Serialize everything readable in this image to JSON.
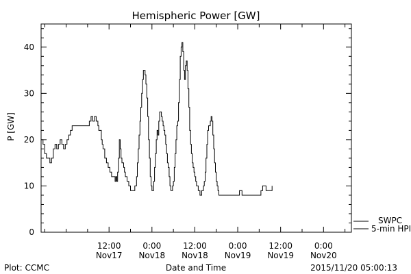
{
  "chart_data": {
    "type": "line",
    "title": "Hemispheric Power [GW]",
    "ylabel": "P [GW]",
    "xlabel": "Date and Time",
    "ylim": [
      0,
      45
    ],
    "yticks": [
      0,
      10,
      20,
      30,
      40
    ],
    "xlim": [
      -0.292,
      3.325
    ],
    "xticks": [
      {
        "t": 0.5,
        "time": "12:00",
        "date": "Nov17"
      },
      {
        "t": 1.0,
        "time": "0:00",
        "date": "Nov18"
      },
      {
        "t": 1.5,
        "time": "12:00",
        "date": "Nov18"
      },
      {
        "t": 2.0,
        "time": "0:00",
        "date": "Nov19"
      },
      {
        "t": 2.5,
        "time": "12:00",
        "date": "Nov19"
      },
      {
        "t": 3.0,
        "time": "0:00",
        "date": "Nov20"
      }
    ],
    "grid": false,
    "legend_position": "bottom-right",
    "series": [
      {
        "name": "SWPC",
        "values": [
          [
            -0.292,
            20
          ],
          [
            -0.27,
            19
          ],
          [
            -0.25,
            17
          ],
          [
            -0.23,
            16
          ],
          [
            -0.21,
            16
          ],
          [
            -0.19,
            15
          ],
          [
            -0.17,
            16
          ],
          [
            -0.15,
            18
          ],
          [
            -0.13,
            19
          ],
          [
            -0.11,
            18
          ],
          [
            -0.09,
            19
          ],
          [
            -0.07,
            20
          ],
          [
            -0.05,
            19
          ],
          [
            -0.03,
            18
          ],
          [
            -0.01,
            19
          ],
          [
            0.01,
            20
          ],
          [
            0.03,
            21
          ],
          [
            0.05,
            22
          ],
          [
            0.07,
            23
          ],
          [
            0.1,
            23
          ],
          [
            0.15,
            23
          ],
          [
            0.2,
            23
          ],
          [
            0.25,
            23
          ],
          [
            0.27,
            24
          ],
          [
            0.29,
            25
          ],
          [
            0.31,
            24
          ],
          [
            0.33,
            25
          ],
          [
            0.35,
            24
          ],
          [
            0.37,
            23
          ],
          [
            0.38,
            22
          ],
          [
            0.4,
            22
          ],
          [
            0.41,
            20
          ],
          [
            0.42,
            19
          ],
          [
            0.43,
            18
          ],
          [
            0.45,
            16
          ],
          [
            0.47,
            15
          ],
          [
            0.49,
            14
          ],
          [
            0.51,
            13
          ],
          [
            0.53,
            12
          ],
          [
            0.55,
            12
          ],
          [
            0.57,
            11
          ],
          [
            0.58,
            12
          ],
          [
            0.59,
            11
          ],
          [
            0.6,
            13
          ],
          [
            0.61,
            16
          ],
          [
            0.62,
            20
          ],
          [
            0.63,
            18
          ],
          [
            0.64,
            16
          ],
          [
            0.65,
            15
          ],
          [
            0.67,
            14
          ],
          [
            0.68,
            13
          ],
          [
            0.69,
            12
          ],
          [
            0.7,
            12
          ],
          [
            0.71,
            11
          ],
          [
            0.72,
            11
          ],
          [
            0.73,
            10
          ],
          [
            0.74,
            10
          ],
          [
            0.75,
            9
          ],
          [
            0.77,
            9
          ],
          [
            0.79,
            9
          ],
          [
            0.8,
            10
          ],
          [
            0.81,
            10
          ],
          [
            0.82,
            12
          ],
          [
            0.83,
            15
          ],
          [
            0.84,
            18
          ],
          [
            0.85,
            21
          ],
          [
            0.86,
            24
          ],
          [
            0.87,
            27
          ],
          [
            0.88,
            30
          ],
          [
            0.89,
            33
          ],
          [
            0.9,
            35
          ],
          [
            0.91,
            35
          ],
          [
            0.92,
            34
          ],
          [
            0.93,
            32
          ],
          [
            0.94,
            29
          ],
          [
            0.95,
            25
          ],
          [
            0.96,
            20
          ],
          [
            0.97,
            16
          ],
          [
            0.98,
            12
          ],
          [
            0.99,
            10
          ],
          [
            1.0,
            9
          ],
          [
            1.01,
            9
          ],
          [
            1.02,
            11
          ],
          [
            1.03,
            14
          ],
          [
            1.04,
            17
          ],
          [
            1.05,
            20
          ],
          [
            1.06,
            22
          ],
          [
            1.07,
            21
          ],
          [
            1.08,
            24
          ],
          [
            1.09,
            26
          ],
          [
            1.1,
            26
          ],
          [
            1.11,
            25
          ],
          [
            1.12,
            24
          ],
          [
            1.13,
            23
          ],
          [
            1.14,
            22
          ],
          [
            1.15,
            21
          ],
          [
            1.16,
            19
          ],
          [
            1.17,
            17
          ],
          [
            1.18,
            15
          ],
          [
            1.19,
            14
          ],
          [
            1.2,
            12
          ],
          [
            1.21,
            10
          ],
          [
            1.22,
            9
          ],
          [
            1.23,
            9
          ],
          [
            1.24,
            10
          ],
          [
            1.25,
            11
          ],
          [
            1.26,
            14
          ],
          [
            1.27,
            17
          ],
          [
            1.28,
            20
          ],
          [
            1.29,
            23
          ],
          [
            1.3,
            24
          ],
          [
            1.31,
            28
          ],
          [
            1.32,
            33
          ],
          [
            1.33,
            38
          ],
          [
            1.34,
            40
          ],
          [
            1.35,
            41
          ],
          [
            1.36,
            39
          ],
          [
            1.37,
            35
          ],
          [
            1.38,
            33
          ],
          [
            1.39,
            36
          ],
          [
            1.4,
            37
          ],
          [
            1.41,
            35
          ],
          [
            1.42,
            31
          ],
          [
            1.43,
            27
          ],
          [
            1.44,
            22
          ],
          [
            1.45,
            19
          ],
          [
            1.46,
            17
          ],
          [
            1.47,
            15
          ],
          [
            1.48,
            14
          ],
          [
            1.49,
            13
          ],
          [
            1.5,
            12
          ],
          [
            1.51,
            11
          ],
          [
            1.52,
            10
          ],
          [
            1.53,
            10
          ],
          [
            1.54,
            9
          ],
          [
            1.55,
            9
          ],
          [
            1.56,
            8
          ],
          [
            1.57,
            8
          ],
          [
            1.58,
            9
          ],
          [
            1.59,
            9
          ],
          [
            1.6,
            10
          ],
          [
            1.61,
            11
          ],
          [
            1.62,
            13
          ],
          [
            1.63,
            16
          ],
          [
            1.64,
            19
          ],
          [
            1.65,
            22
          ],
          [
            1.66,
            23
          ],
          [
            1.67,
            23
          ],
          [
            1.68,
            24
          ],
          [
            1.69,
            25
          ],
          [
            1.7,
            24
          ],
          [
            1.71,
            21
          ],
          [
            1.72,
            18
          ],
          [
            1.73,
            15
          ],
          [
            1.74,
            13
          ],
          [
            1.75,
            11
          ],
          [
            1.76,
            10
          ],
          [
            1.77,
            9
          ],
          [
            1.78,
            8
          ],
          [
            1.8,
            8
          ],
          [
            1.85,
            8
          ],
          [
            1.9,
            8
          ],
          [
            1.95,
            8
          ],
          [
            2.0,
            8
          ],
          [
            2.02,
            9
          ],
          [
            2.03,
            9
          ],
          [
            2.05,
            8
          ],
          [
            2.1,
            8
          ],
          [
            2.15,
            8
          ],
          [
            2.2,
            8
          ],
          [
            2.25,
            8
          ],
          [
            2.27,
            9
          ],
          [
            2.29,
            10
          ],
          [
            2.31,
            10
          ],
          [
            2.33,
            9
          ],
          [
            2.35,
            9
          ],
          [
            2.37,
            9
          ],
          [
            2.4,
            10
          ]
        ]
      },
      {
        "name": "5-min HPI",
        "values": []
      }
    ]
  },
  "footer": {
    "left": "Plot: CCMC",
    "right": "2015/11/20 05:00:13"
  }
}
